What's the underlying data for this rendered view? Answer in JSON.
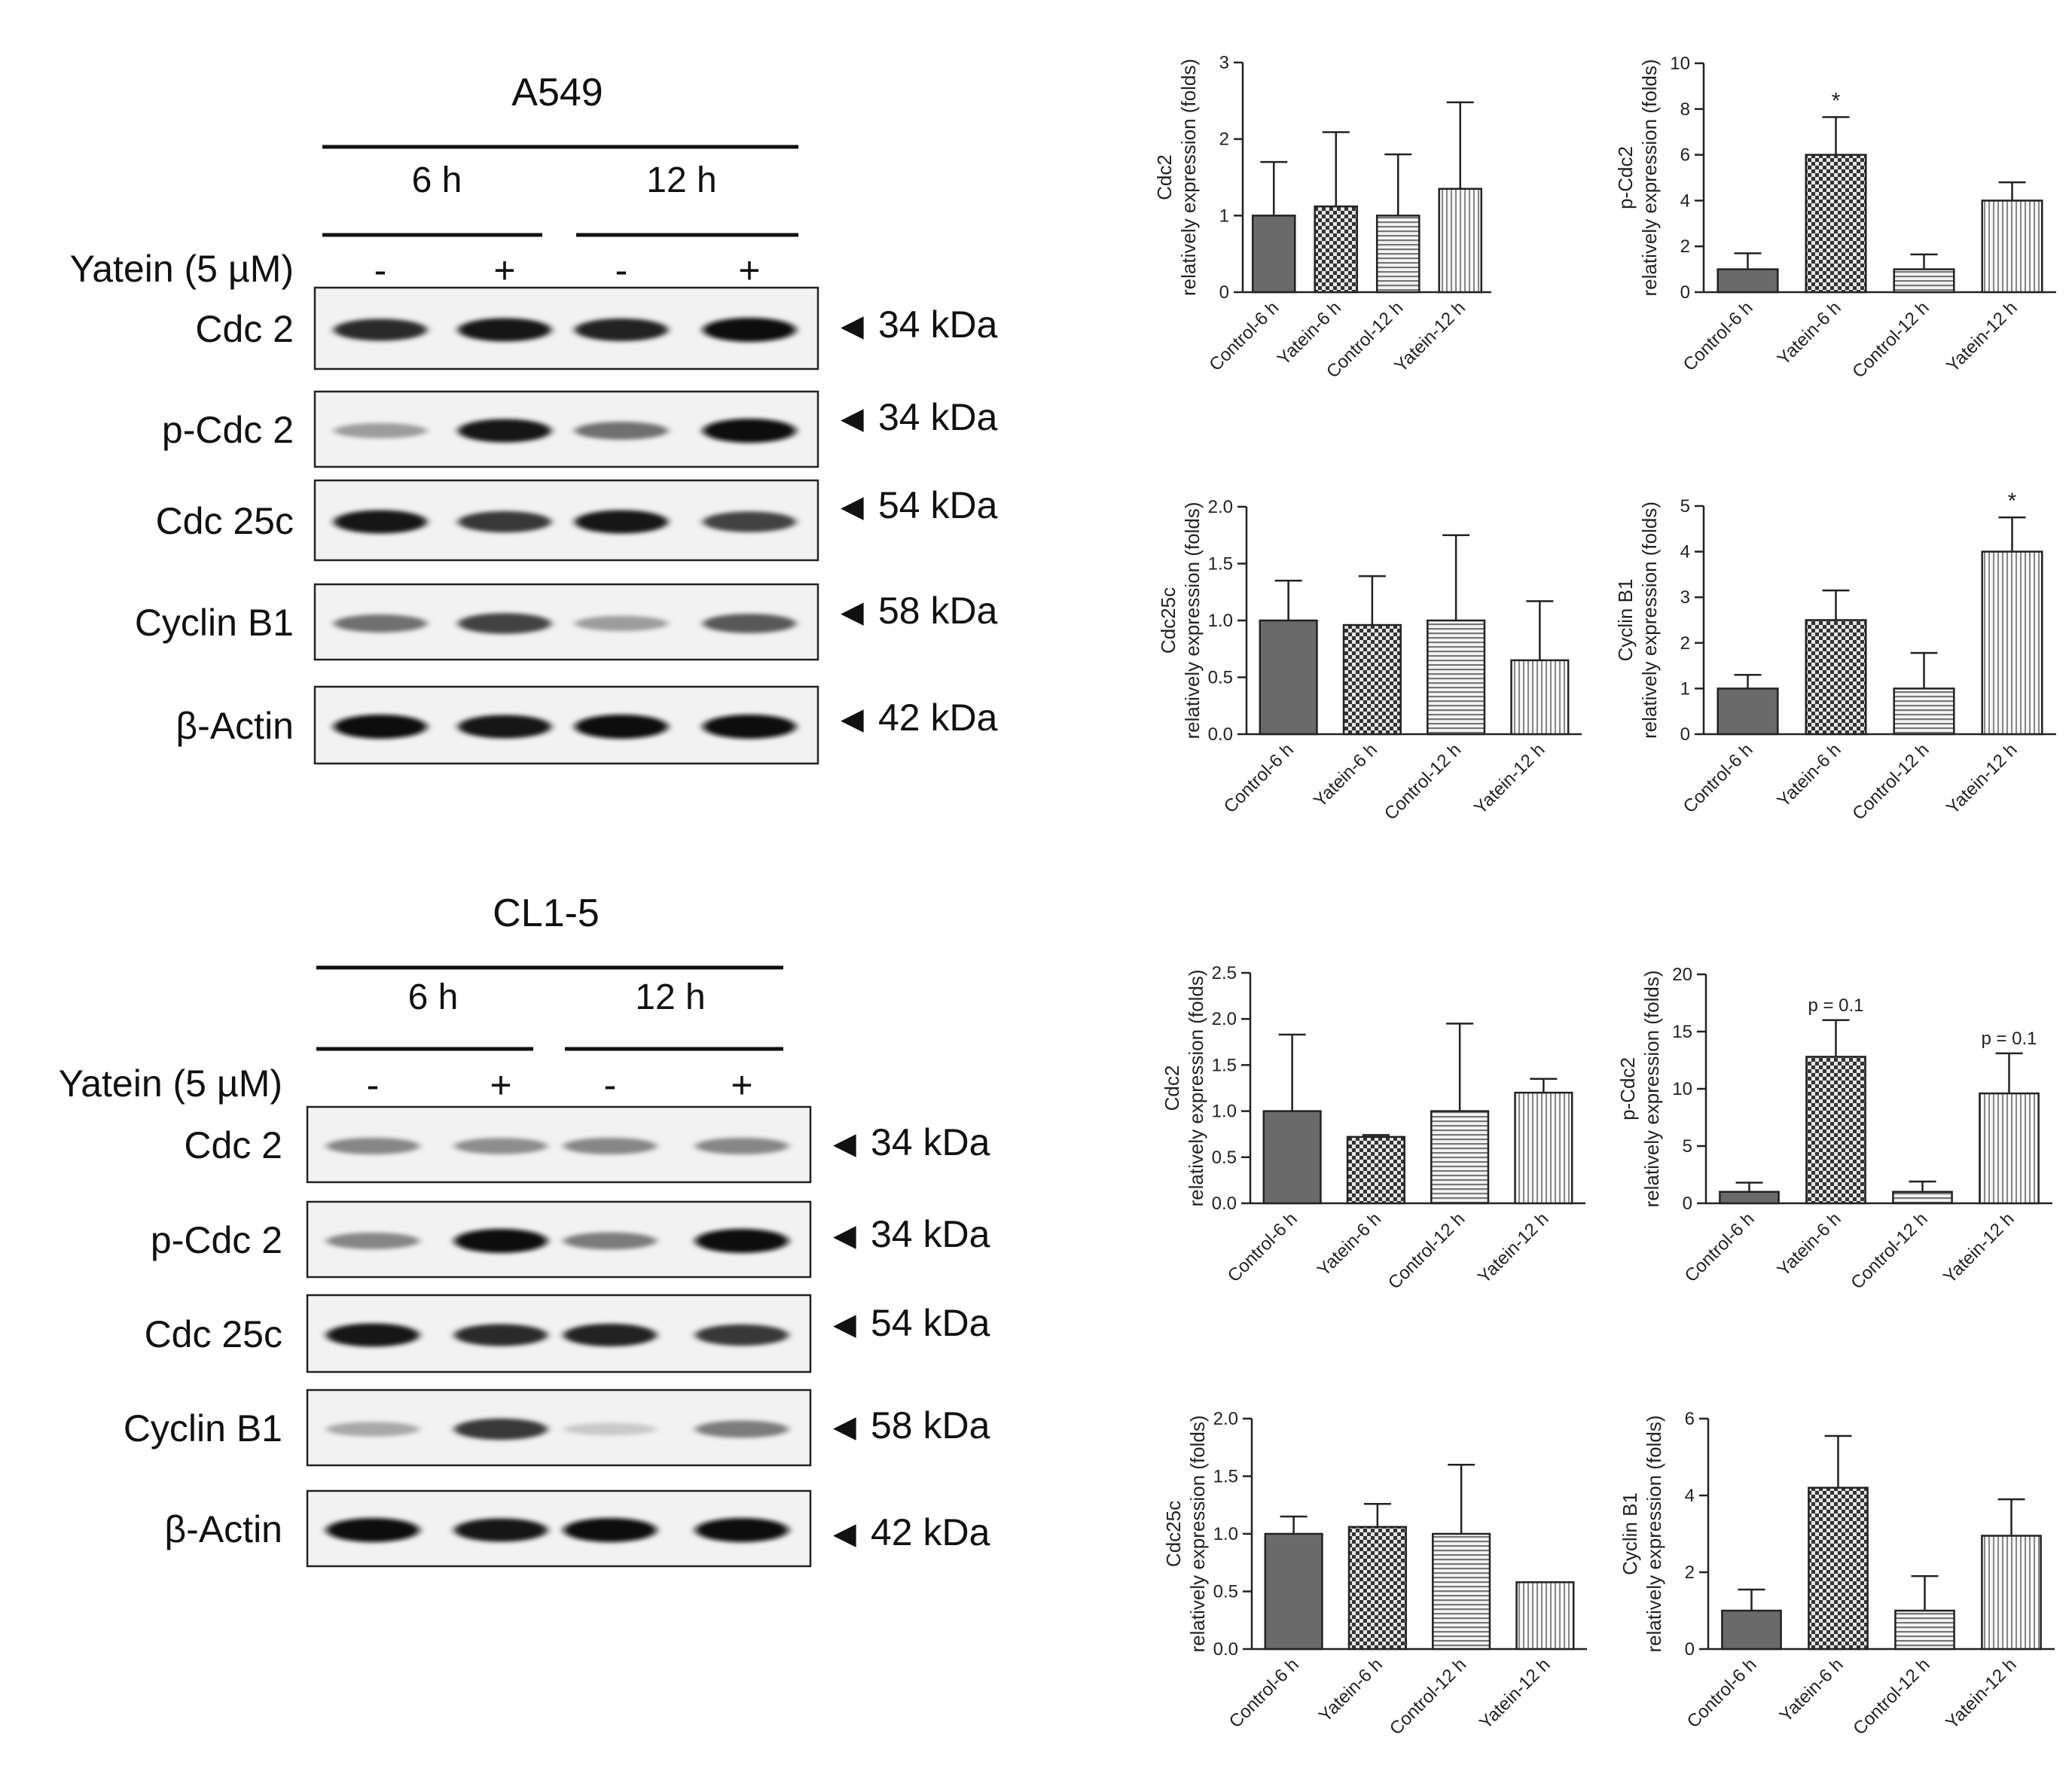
{
  "blot_panels": [
    {
      "cell_line": "A549",
      "times": [
        "6 h",
        "12 h"
      ],
      "treatment_label": "Yatein (5 µM)",
      "lanes": [
        "-",
        "+",
        "-",
        "+"
      ],
      "marker_glyph": "◀",
      "rows": [
        {
          "protein": "Cdc 2",
          "kda": "34 kDa",
          "band_intensity": [
            0.85,
            0.95,
            0.9,
            1.0
          ]
        },
        {
          "protein": "p-Cdc 2",
          "kda": "34 kDa",
          "band_intensity": [
            0.35,
            0.95,
            0.55,
            1.0
          ]
        },
        {
          "protein": "Cdc 25c",
          "kda": "54 kDa",
          "band_intensity": [
            0.95,
            0.8,
            0.95,
            0.75
          ]
        },
        {
          "protein": "Cyclin B1",
          "kda": "58 kDa",
          "band_intensity": [
            0.55,
            0.75,
            0.35,
            0.65
          ]
        },
        {
          "protein": "β-Actin",
          "kda": "42 kDa",
          "band_intensity": [
            1.0,
            0.95,
            1.0,
            1.0
          ]
        }
      ]
    },
    {
      "cell_line": "CL1-5",
      "times": [
        "6 h",
        "12 h"
      ],
      "treatment_label": "Yatein (5 µM)",
      "lanes": [
        "-",
        "+",
        "-",
        "+"
      ],
      "marker_glyph": "◀",
      "rows": [
        {
          "protein": "Cdc 2",
          "kda": "34 kDa",
          "band_intensity": [
            0.45,
            0.42,
            0.45,
            0.45
          ]
        },
        {
          "protein": "p-Cdc 2",
          "kda": "34 kDa",
          "band_intensity": [
            0.45,
            1.0,
            0.5,
            1.0
          ]
        },
        {
          "protein": "Cdc 25c",
          "kda": "54 kDa",
          "band_intensity": [
            0.95,
            0.85,
            0.9,
            0.8
          ]
        },
        {
          "protein": "Cyclin B1",
          "kda": "58 kDa",
          "band_intensity": [
            0.3,
            0.8,
            0.15,
            0.5
          ]
        },
        {
          "protein": "β-Actin",
          "kda": "42 kDa",
          "band_intensity": [
            1.0,
            0.95,
            1.0,
            1.0
          ]
        }
      ]
    }
  ],
  "chart_data": [
    {
      "type": "bar",
      "title": "",
      "ylabel": "Cdc2\nrelatively expression (folds)",
      "categories": [
        "Control-6 h",
        "Yatein-6 h",
        "Control-12 h",
        "Yatein-12 h"
      ],
      "values": [
        1.0,
        1.12,
        1.0,
        1.35
      ],
      "errors": [
        0.7,
        0.97,
        0.8,
        1.13
      ],
      "ylim": [
        0,
        3
      ],
      "yticks": [
        "0",
        "1",
        "2",
        "3"
      ],
      "annotations": [
        "",
        "",
        "",
        ""
      ],
      "patterns": [
        "solid",
        "checker",
        "hlines",
        "vlines"
      ]
    },
    {
      "type": "bar",
      "title": "",
      "ylabel": "p-Cdc2\nrelatively expression (folds)",
      "categories": [
        "Control-6 h",
        "Yatein-6 h",
        "Control-12 h",
        "Yatein-12 h"
      ],
      "values": [
        1.0,
        6.0,
        1.0,
        4.0
      ],
      "errors": [
        0.7,
        1.65,
        0.65,
        0.8
      ],
      "ylim": [
        0,
        10
      ],
      "yticks": [
        "0",
        "2",
        "4",
        "6",
        "8",
        "10"
      ],
      "annotations": [
        "",
        "*",
        "",
        ""
      ],
      "patterns": [
        "solid",
        "checker",
        "hlines",
        "vlines"
      ]
    },
    {
      "type": "bar",
      "title": "",
      "ylabel": "Cdc25c\nrelatively expression (folds)",
      "categories": [
        "Control-6 h",
        "Yatein-6 h",
        "Control-12 h",
        "Yatein-12 h"
      ],
      "values": [
        1.0,
        0.96,
        1.0,
        0.65
      ],
      "errors": [
        0.35,
        0.43,
        0.75,
        0.52
      ],
      "ylim": [
        0,
        2
      ],
      "yticks": [
        "0.0",
        "0.5",
        "1.0",
        "1.5",
        "2.0"
      ],
      "annotations": [
        "",
        "",
        "",
        ""
      ],
      "patterns": [
        "solid",
        "checker",
        "hlines",
        "vlines"
      ]
    },
    {
      "type": "bar",
      "title": "",
      "ylabel": "Cyclin B1\nrelatively expression (folds)",
      "categories": [
        "Control-6 h",
        "Yatein-6 h",
        "Control-12 h",
        "Yatein-12 h"
      ],
      "values": [
        1.0,
        2.5,
        1.0,
        4.0
      ],
      "errors": [
        0.3,
        0.65,
        0.78,
        0.75
      ],
      "ylim": [
        0,
        5
      ],
      "yticks": [
        "0",
        "1",
        "2",
        "3",
        "4",
        "5"
      ],
      "annotations": [
        "",
        "",
        "",
        "*"
      ],
      "patterns": [
        "solid",
        "checker",
        "hlines",
        "vlines"
      ]
    },
    {
      "type": "bar",
      "title": "",
      "ylabel": "Cdc2\nrelatively expression (folds)",
      "categories": [
        "Control-6 h",
        "Yatein-6 h",
        "Control-12 h",
        "Yatein-12 h"
      ],
      "values": [
        1.0,
        0.72,
        1.0,
        1.2
      ],
      "errors": [
        0.83,
        0.02,
        0.95,
        0.15
      ],
      "ylim": [
        0,
        2.5
      ],
      "yticks": [
        "0.0",
        "0.5",
        "1.0",
        "1.5",
        "2.0",
        "2.5"
      ],
      "annotations": [
        "",
        "",
        "",
        ""
      ],
      "patterns": [
        "solid",
        "checker",
        "hlines",
        "vlines"
      ]
    },
    {
      "type": "bar",
      "title": "",
      "ylabel": "p-Cdc2\nrelatively expression (folds)",
      "categories": [
        "Control-6 h",
        "Yatein-6 h",
        "Control-12 h",
        "Yatein-12 h"
      ],
      "values": [
        1.0,
        12.8,
        1.0,
        9.6
      ],
      "errors": [
        0.8,
        3.2,
        0.9,
        3.5
      ],
      "ylim": [
        0,
        20
      ],
      "yticks": [
        "0",
        "5",
        "10",
        "15",
        "20"
      ],
      "annotations": [
        "",
        "p = 0.1",
        "",
        "p = 0.1"
      ],
      "patterns": [
        "solid",
        "checker",
        "hlines",
        "vlines"
      ]
    },
    {
      "type": "bar",
      "title": "",
      "ylabel": "Cdc25c\nrelatively expression (folds)",
      "categories": [
        "Control-6 h",
        "Yatein-6 h",
        "Control-12 h",
        "Yatein-12 h"
      ],
      "values": [
        1.0,
        1.06,
        1.0,
        0.58
      ],
      "errors": [
        0.15,
        0.2,
        0.6,
        0.0
      ],
      "ylim": [
        0,
        2
      ],
      "yticks": [
        "0.0",
        "0.5",
        "1.0",
        "1.5",
        "2.0"
      ],
      "annotations": [
        "",
        "",
        "",
        ""
      ],
      "patterns": [
        "solid",
        "checker",
        "hlines",
        "vlines"
      ]
    },
    {
      "type": "bar",
      "title": "",
      "ylabel": "Cyclin B1\nrelatively expression (folds)",
      "categories": [
        "Control-6 h",
        "Yatein-6 h",
        "Control-12 h",
        "Yatein-12 h"
      ],
      "values": [
        1.0,
        4.2,
        1.0,
        2.95
      ],
      "errors": [
        0.55,
        1.35,
        0.9,
        0.95
      ],
      "ylim": [
        0,
        6
      ],
      "yticks": [
        "0",
        "2",
        "4",
        "6"
      ],
      "annotations": [
        "",
        "",
        "",
        ""
      ],
      "patterns": [
        "solid",
        "checker",
        "hlines",
        "vlines"
      ]
    }
  ]
}
